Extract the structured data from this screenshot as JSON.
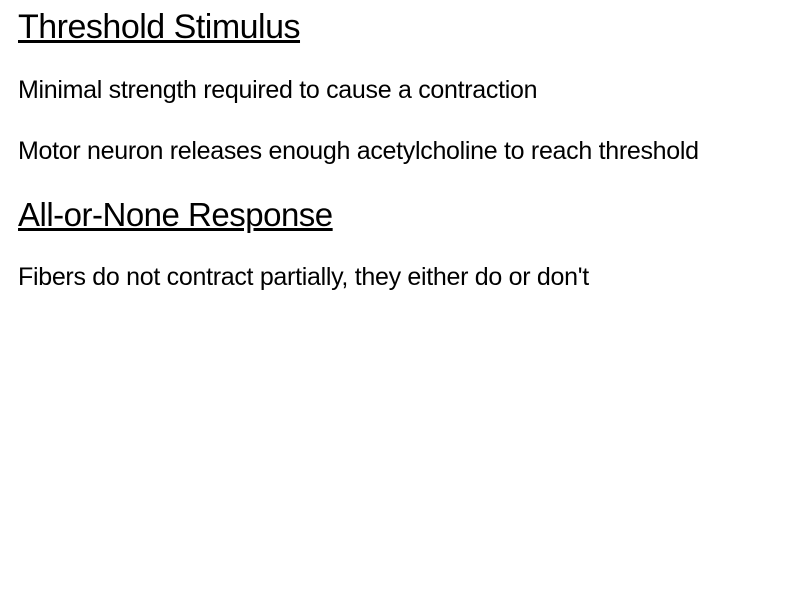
{
  "sections": [
    {
      "heading": "Threshold Stimulus",
      "heading_fontsize": 34,
      "paragraphs": [
        "Minimal strength required to cause a contraction",
        "Motor neuron releases enough acetylcholine to reach threshold"
      ]
    },
    {
      "heading": "All-or-None Response",
      "heading_fontsize": 33,
      "paragraphs": [
        "Fibers do not contract partially, they either do or don't"
      ]
    }
  ],
  "style": {
    "background_color": "#ffffff",
    "text_color": "#000000",
    "font_family": "Arial",
    "heading_underline": true,
    "body_fontsize": 25,
    "heading_fontweight": "normal",
    "body_fontweight": "normal"
  }
}
